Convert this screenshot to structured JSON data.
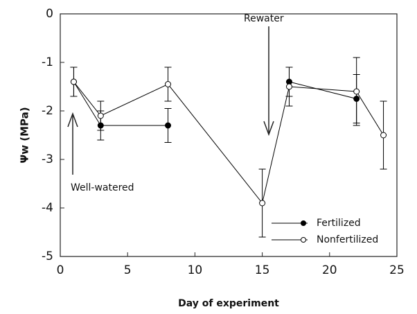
{
  "chart_data": {
    "type": "line",
    "x_label": "Day of experiment",
    "y_label": "Ψw (MPa)",
    "x": [
      1,
      3,
      8,
      15,
      17,
      22,
      24
    ],
    "series": [
      {
        "name": "Fertilized",
        "color": "#000000",
        "marker": "filled",
        "values": [
          -1.4,
          -2.3,
          -2.3,
          null,
          -1.4,
          -1.75,
          null
        ],
        "errors": [
          0.3,
          0.3,
          0.35,
          null,
          0.3,
          0.5,
          null
        ]
      },
      {
        "name": "Nonfertilized",
        "color": "#000000",
        "marker": "open",
        "values": [
          -1.4,
          -2.1,
          -1.45,
          -3.9,
          -1.5,
          -1.6,
          -2.5
        ],
        "errors": [
          0.3,
          0.3,
          0.35,
          0.7,
          0.4,
          0.7,
          0.7
        ]
      }
    ],
    "xlim": [
      0,
      25
    ],
    "ylim": [
      -5,
      0
    ],
    "xticks": [
      0,
      5,
      10,
      15,
      20,
      25
    ],
    "yticks": [
      0,
      -1,
      -2,
      -3,
      -4,
      -5
    ],
    "legend": "lower right",
    "annotations": [
      "Rewater",
      "Well-watered"
    ]
  }
}
